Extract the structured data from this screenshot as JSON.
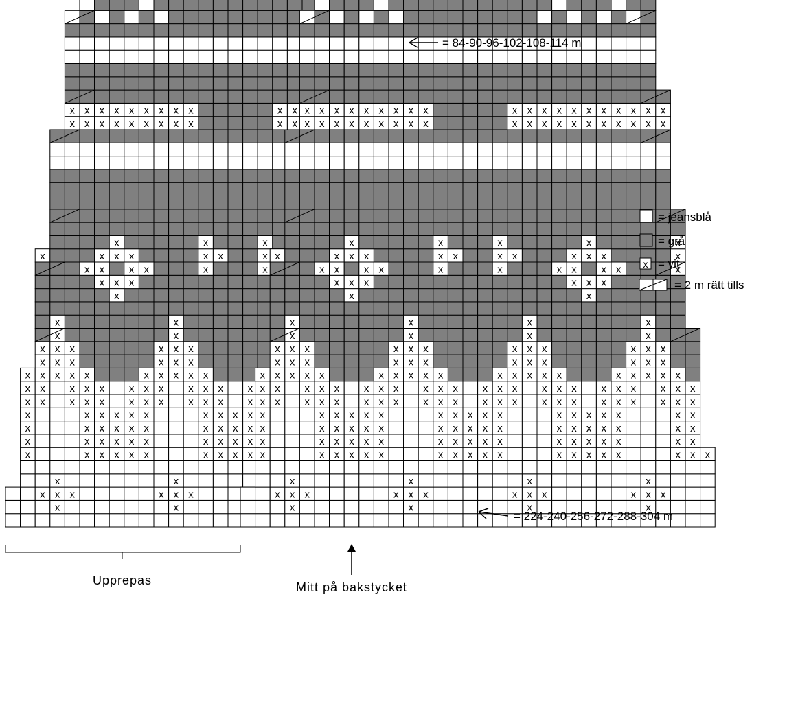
{
  "colors": {
    "jeansbla": "#ffffff",
    "gra": "#808080",
    "vit": "#ffffff",
    "grid_line": "#000000"
  },
  "symbols": {
    "vit_mark": "x"
  },
  "annotations": {
    "top_stitches": "= 84-90-96-102-108-114 m",
    "bottom_stitches": "= 224-240-256-272-288-304 m",
    "repeat_label": "Upprepas",
    "center_label": "Mitt på bakstycket"
  },
  "legend": [
    {
      "key": "jeansbla",
      "label": "= jeansblå"
    },
    {
      "key": "gra",
      "label": "= grå"
    },
    {
      "key": "vit",
      "label": "= vit"
    },
    {
      "key": "decrease",
      "label": "= 2 m rätt tills"
    }
  ],
  "chart": {
    "cols": 32,
    "rows": 45,
    "column_reduction_by_row_group": [
      {
        "from_row": 0,
        "to_row": 2,
        "left": 0,
        "right": 0
      },
      {
        "from_row": 3,
        "to_row": 5,
        "left": 1,
        "right": 0
      },
      {
        "from_row": 6,
        "to_row": 11,
        "left": 1,
        "right": 1
      },
      {
        "from_row": 12,
        "to_row": 14,
        "left": 2,
        "right": 1
      },
      {
        "from_row": 15,
        "to_row": 20,
        "left": 2,
        "right": 2
      },
      {
        "from_row": 21,
        "to_row": 23,
        "left": 3,
        "right": 2
      },
      {
        "from_row": 24,
        "to_row": 29,
        "left": 3,
        "right": 3
      },
      {
        "from_row": 30,
        "to_row": 32,
        "left": 4,
        "right": 3
      },
      {
        "from_row": 33,
        "to_row": 38,
        "left": 4,
        "right": 4
      },
      {
        "from_row": 39,
        "to_row": 44,
        "left": 5,
        "right": 4
      }
    ],
    "row_color_bands": [
      {
        "rows": [
          0,
          10
        ],
        "color": "jeansbla"
      },
      {
        "rows": [
          11,
          18
        ],
        "color": "gra"
      },
      {
        "rows": [
          19,
          22
        ],
        "color": "gra"
      },
      {
        "rows": [
          23,
          26
        ],
        "color": "gra"
      },
      {
        "rows": [
          27,
          28
        ],
        "color": "jeansbla"
      },
      {
        "rows": [
          29,
          34
        ],
        "color": "gra"
      },
      {
        "rows": [
          35,
          36
        ],
        "color": "jeansbla"
      },
      {
        "rows": [
          37,
          44
        ],
        "color": "gra"
      }
    ],
    "decrease_rows": [
      14,
      19,
      23,
      29,
      32,
      38,
      42
    ],
    "vit_rows": [
      {
        "row": 1,
        "cols": [
          3,
          11,
          19,
          27
        ]
      },
      {
        "row": 2,
        "cols": [
          2,
          3,
          4,
          10,
          11,
          12,
          18,
          19,
          20,
          26,
          27,
          28
        ]
      },
      {
        "row": 3,
        "cols": [
          3,
          11,
          19,
          27
        ]
      },
      {
        "row": 5,
        "cols": [
          0,
          1,
          5,
          6,
          7,
          8,
          9,
          13,
          14,
          15,
          16,
          17,
          21,
          22,
          23,
          24,
          25,
          29,
          30,
          31
        ]
      },
      {
        "row": 6,
        "cols": [
          0,
          1,
          5,
          6,
          7,
          8,
          9,
          13,
          14,
          15,
          16,
          17,
          21,
          22,
          23,
          24,
          25,
          29,
          30,
          31
        ]
      },
      {
        "row": 7,
        "cols": [
          0,
          1,
          5,
          6,
          7,
          8,
          9,
          13,
          14,
          15,
          16,
          17,
          21,
          22,
          23,
          24,
          25,
          29,
          30,
          31
        ]
      },
      {
        "row": 8,
        "cols": [
          0,
          1,
          5,
          6,
          7,
          8,
          9,
          13,
          14,
          15,
          16,
          17,
          21,
          22,
          23,
          24,
          25,
          29,
          30,
          31
        ]
      },
      {
        "row": 9,
        "cols": [
          0,
          1,
          2,
          4,
          5,
          6,
          8,
          9,
          10,
          12,
          13,
          14,
          16,
          17,
          18,
          20,
          21,
          22,
          24,
          25,
          26,
          28,
          29,
          30
        ]
      },
      {
        "row": 10,
        "cols": [
          0,
          1,
          2,
          4,
          5,
          6,
          8,
          9,
          10,
          12,
          13,
          14,
          16,
          17,
          18,
          20,
          21,
          22,
          24,
          25,
          26,
          28,
          29,
          30
        ]
      },
      {
        "row": 11,
        "cols": [
          1,
          2,
          3,
          4,
          5,
          9,
          10,
          11,
          12,
          13,
          17,
          18,
          19,
          20,
          21,
          25,
          26,
          27,
          28,
          29
        ]
      },
      {
        "row": 12,
        "cols": [
          2,
          3,
          4,
          10,
          11,
          12,
          18,
          19,
          20,
          26,
          27,
          28
        ]
      },
      {
        "row": 13,
        "cols": [
          2,
          3,
          4,
          10,
          11,
          12,
          18,
          19,
          20,
          26,
          27,
          28
        ]
      },
      {
        "row": 14,
        "cols": [
          3,
          11,
          19,
          27
        ]
      },
      {
        "row": 15,
        "cols": [
          3,
          11,
          19,
          27
        ]
      },
      {
        "row": 17,
        "cols": [
          7,
          23
        ]
      },
      {
        "row": 18,
        "cols": [
          6,
          7,
          8,
          22,
          23,
          24
        ]
      },
      {
        "row": 19,
        "cols": [
          1,
          5,
          6,
          8,
          9,
          13,
          17,
          21,
          22,
          24,
          25,
          29
        ]
      },
      {
        "row": 20,
        "cols": [
          1,
          2,
          6,
          7,
          8,
          13,
          14,
          17,
          18,
          22,
          23,
          24,
          29,
          30
        ]
      },
      {
        "row": 21,
        "cols": [
          1,
          7,
          13,
          17,
          23,
          29
        ]
      },
      {
        "row": 30,
        "cols": [
          2,
          3,
          4,
          5,
          6,
          7,
          8,
          9,
          10,
          11,
          12,
          18,
          19,
          20,
          21,
          22,
          23,
          24,
          25,
          26,
          27,
          28
        ]
      },
      {
        "row": 31,
        "cols": [
          2,
          3,
          4,
          5,
          6,
          7,
          8,
          9,
          10,
          11,
          12,
          18,
          19,
          20,
          21,
          22,
          23,
          24,
          25,
          26,
          27,
          28
        ]
      }
    ],
    "jeansbla_cells": [
      {
        "row": 38,
        "cols": [
          4,
          6,
          8,
          10,
          20,
          22,
          24,
          26
        ]
      },
      {
        "row": 39,
        "cols": [
          5,
          9,
          21,
          25
        ]
      }
    ]
  }
}
